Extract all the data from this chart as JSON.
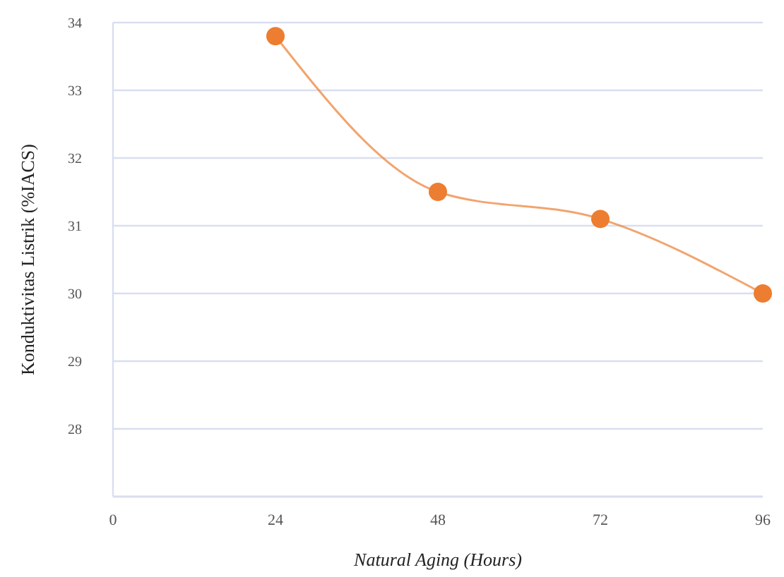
{
  "chart_data": {
    "type": "line",
    "xlabel": "Natural Aging (Hours)",
    "ylabel": "Konduktivitas Listrik (%IACS)",
    "x": [
      24,
      48,
      72,
      96
    ],
    "series": [
      {
        "color": "#ed7d31",
        "values": [
          33.8,
          31.5,
          31.1,
          30.0
        ]
      }
    ],
    "xlim": [
      0,
      96
    ],
    "xticks": [
      0,
      24,
      48,
      72,
      96
    ],
    "ylim": [
      27,
      34
    ],
    "yticks": [
      28,
      29,
      30,
      31,
      32,
      33,
      34
    ],
    "grid": "y",
    "marker": "circle",
    "line_style": "solid"
  }
}
